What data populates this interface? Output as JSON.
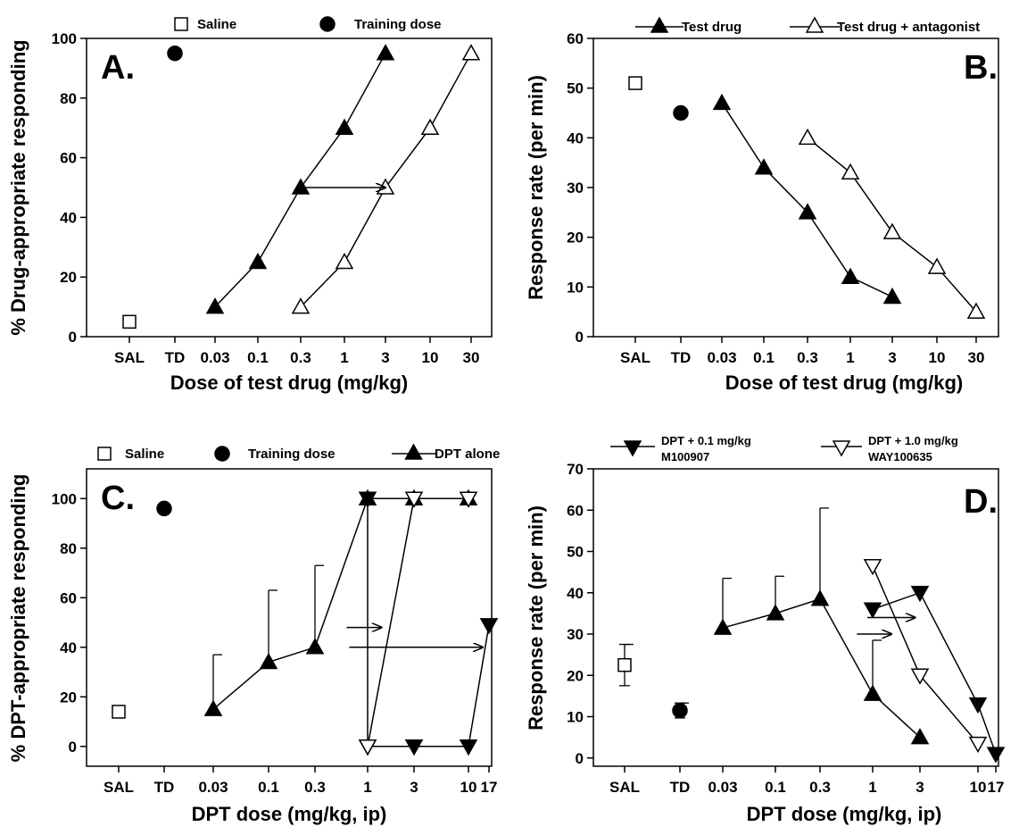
{
  "chart_data": [
    {
      "panel": "A.",
      "type": "line",
      "xlabel": "Dose of test drug (mg/kg)",
      "ylabel": "% Drug-appropriate responding",
      "ylim": [
        0,
        100
      ],
      "yticks": [
        0,
        20,
        40,
        60,
        80,
        100
      ],
      "categories": [
        "SAL",
        "TD",
        "0.03",
        "0.1",
        "0.3",
        "1",
        "3",
        "10",
        "30"
      ],
      "legend": [
        "Saline",
        "Training dose"
      ],
      "legend_placement": "top",
      "series": [
        {
          "name": "Saline",
          "marker": "square-open",
          "connected": false,
          "points": [
            {
              "x": "SAL",
              "y": 5
            }
          ]
        },
        {
          "name": "Training dose",
          "marker": "circle-filled",
          "connected": false,
          "points": [
            {
              "x": "TD",
              "y": 95
            }
          ]
        },
        {
          "marker": "triangle-up-filled",
          "connected": true,
          "points": [
            {
              "x": "0.03",
              "y": 10
            },
            {
              "x": "0.1",
              "y": 25
            },
            {
              "x": "0.3",
              "y": 50
            },
            {
              "x": "1",
              "y": 70
            },
            {
              "x": "3",
              "y": 95
            }
          ]
        },
        {
          "marker": "triangle-up-open",
          "connected": true,
          "points": [
            {
              "x": "0.3",
              "y": 10
            },
            {
              "x": "1",
              "y": 25
            },
            {
              "x": "3",
              "y": 50
            },
            {
              "x": "10",
              "y": 70
            },
            {
              "x": "30",
              "y": 95
            }
          ]
        }
      ],
      "arrows": [
        {
          "from": {
            "x": "0.3",
            "y": 50
          },
          "to": {
            "x": "3",
            "y": 50
          }
        }
      ]
    },
    {
      "panel": "B.",
      "type": "line",
      "xlabel": "Dose of test drug (mg/kg)",
      "ylabel": "Response rate (per min)",
      "ylim": [
        0,
        60
      ],
      "yticks": [
        0,
        10,
        20,
        30,
        40,
        50,
        60
      ],
      "categories": [
        "SAL",
        "TD",
        "0.03",
        "0.1",
        "0.3",
        "1",
        "3",
        "10",
        "30"
      ],
      "legend": [
        "Test drug",
        "Test drug + antagonist"
      ],
      "legend_placement": "top",
      "series": [
        {
          "marker": "square-open",
          "connected": false,
          "points": [
            {
              "x": "SAL",
              "y": 51
            }
          ]
        },
        {
          "marker": "circle-filled",
          "connected": false,
          "points": [
            {
              "x": "TD",
              "y": 45
            }
          ]
        },
        {
          "name": "Test drug",
          "marker": "triangle-up-filled",
          "connected": true,
          "points": [
            {
              "x": "0.03",
              "y": 47
            },
            {
              "x": "0.1",
              "y": 34
            },
            {
              "x": "0.3",
              "y": 25
            },
            {
              "x": "1",
              "y": 12
            },
            {
              "x": "3",
              "y": 8
            }
          ]
        },
        {
          "name": "Test drug + antagonist",
          "marker": "triangle-up-open",
          "connected": true,
          "points": [
            {
              "x": "0.3",
              "y": 40
            },
            {
              "x": "1",
              "y": 33
            },
            {
              "x": "3",
              "y": 21
            },
            {
              "x": "10",
              "y": 14
            },
            {
              "x": "30",
              "y": 5
            }
          ]
        }
      ],
      "arrows": []
    },
    {
      "panel": "C.",
      "type": "line",
      "xlabel": "DPT dose (mg/kg, ip)",
      "ylabel": "% DPT-appropriate responding",
      "ylim": [
        -8,
        112
      ],
      "yticks": [
        0,
        20,
        40,
        60,
        80,
        100
      ],
      "categories": [
        "SAL",
        "TD",
        "0.03",
        "0.1",
        "0.3",
        "1",
        "3",
        "10",
        "17"
      ],
      "legend": [
        "Saline",
        "Training dose",
        "DPT alone"
      ],
      "legend_placement": "top",
      "series": [
        {
          "name": "Saline",
          "marker": "square-open",
          "connected": false,
          "points": [
            {
              "x": "SAL",
              "y": 14
            }
          ]
        },
        {
          "name": "Training dose",
          "marker": "circle-filled",
          "connected": false,
          "points": [
            {
              "x": "TD",
              "y": 96
            }
          ]
        },
        {
          "name": "DPT alone",
          "marker": "triangle-up-filled",
          "connected": true,
          "points": [
            {
              "x": "0.03",
              "y": 15,
              "err": 22
            },
            {
              "x": "0.1",
              "y": 34,
              "err": 29
            },
            {
              "x": "0.3",
              "y": 40,
              "err": 33
            },
            {
              "x": "1",
              "y": 100
            },
            {
              "x": "3",
              "y": 100
            },
            {
              "x": "10",
              "y": 100
            }
          ]
        },
        {
          "marker": "triangle-down-filled",
          "connected": true,
          "points": [
            {
              "x": "1",
              "y": 100
            },
            {
              "x": "1",
              "y": 0
            },
            {
              "x": "3",
              "y": 0
            },
            {
              "x": "10",
              "y": 0
            },
            {
              "x": "17",
              "y": 49
            }
          ]
        },
        {
          "marker": "triangle-down-open",
          "connected": true,
          "points": [
            {
              "x": "1",
              "y": 0
            },
            {
              "x": "3",
              "y": 100
            },
            {
              "x": "10",
              "y": 100
            }
          ]
        }
      ],
      "arrows": [
        {
          "from": {
            "x": 4.6,
            "y": 48
          },
          "to": {
            "x": 5.3,
            "y": 48
          }
        },
        {
          "from": {
            "x": 4.65,
            "y": 40
          },
          "to": {
            "x": 7.7,
            "y": 40
          }
        }
      ]
    },
    {
      "panel": "D.",
      "type": "line",
      "xlabel": "DPT dose (mg/kg, ip)",
      "ylabel": "Response rate (per min)",
      "ylim": [
        -2,
        70
      ],
      "yticks": [
        0,
        10,
        20,
        30,
        40,
        50,
        60,
        70
      ],
      "categories": [
        "SAL",
        "TD",
        "0.03",
        "0.1",
        "0.3",
        "1",
        "3",
        "10",
        "17"
      ],
      "legend": [
        "DPT + 0.1 mg/kg M100907",
        "DPT + 1.0 mg/kg WAY100635"
      ],
      "legend_lines": [
        [
          "DPT + 0.1 mg/kg",
          "M100907"
        ],
        [
          "DPT + 1.0 mg/kg",
          "WAY100635"
        ]
      ],
      "legend_placement": "top",
      "series": [
        {
          "marker": "square-open",
          "connected": false,
          "points": [
            {
              "x": "SAL",
              "y": 22.5,
              "err": 5
            }
          ]
        },
        {
          "marker": "circle-filled",
          "connected": false,
          "points": [
            {
              "x": "TD",
              "y": 11.5,
              "err": 1.8
            }
          ]
        },
        {
          "marker": "triangle-up-filled",
          "connected": true,
          "points": [
            {
              "x": "0.03",
              "y": 31.5,
              "err": 12
            },
            {
              "x": "0.1",
              "y": 35,
              "err": 9
            },
            {
              "x": "0.3",
              "y": 38.5,
              "err": 22
            },
            {
              "x": "1",
              "y": 15.5,
              "err": 13
            },
            {
              "x": "3",
              "y": 5
            }
          ]
        },
        {
          "name": "DPT + 0.1 mg/kg M100907",
          "marker": "triangle-down-filled",
          "connected": true,
          "points": [
            {
              "x": "1",
              "y": 36
            },
            {
              "x": "3",
              "y": 40
            },
            {
              "x": "10",
              "y": 13
            },
            {
              "x": "17",
              "y": 1
            }
          ]
        },
        {
          "name": "DPT + 1.0 mg/kg WAY100635",
          "marker": "triangle-down-open",
          "connected": true,
          "points": [
            {
              "x": "1",
              "y": 46.5
            },
            {
              "x": "3",
              "y": 20
            },
            {
              "x": "10",
              "y": 3.5
            }
          ]
        }
      ],
      "arrows": [
        {
          "from": {
            "x": 4.9,
            "y": 34
          },
          "to": {
            "x": 5.9,
            "y": 34
          }
        },
        {
          "from": {
            "x": 4.7,
            "y": 30
          },
          "to": {
            "x": 5.4,
            "y": 30
          }
        }
      ]
    }
  ]
}
